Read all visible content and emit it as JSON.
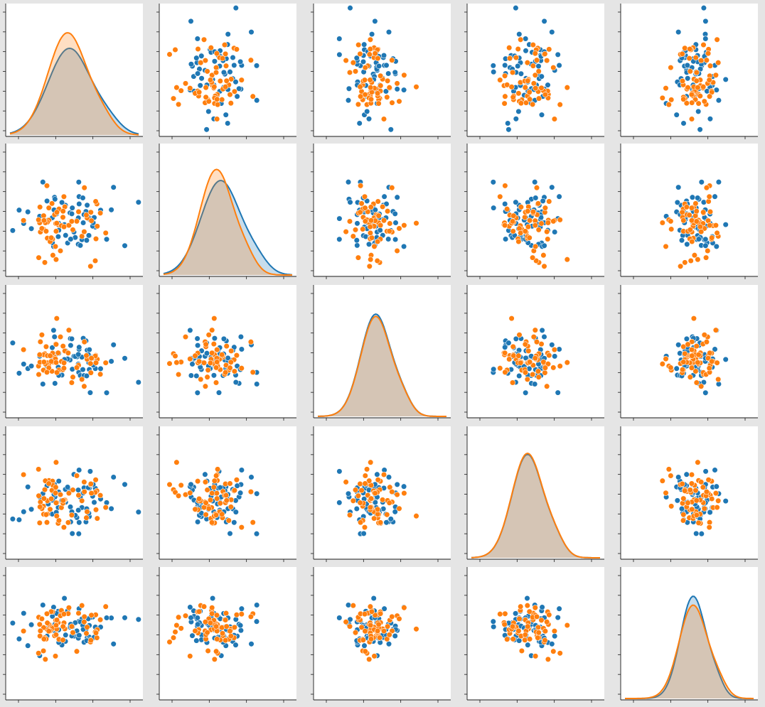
{
  "chart_data": {
    "type": "pairplot",
    "title": "",
    "grid": false,
    "legend": "none",
    "variables": [
      "",
      "",
      "",
      "",
      ""
    ],
    "series": [
      {
        "color": "#1f77b4"
      },
      {
        "color": "#ff7f0e"
      }
    ],
    "ranges": [
      [
        -2.4,
        4.2
      ],
      [
        -2.2,
        4.0
      ],
      [
        -2.6,
        3.4
      ],
      [
        -3.0,
        4.0
      ],
      [
        -2.6,
        2.4
      ]
    ],
    "diagonal_kde": [
      {
        "mean": [
          0.65,
          0.55
        ],
        "sd": [
          1.1,
          1.0
        ],
        "peak": [
          0.78,
          0.92
        ]
      },
      {
        "mean": [
          0.55,
          0.35
        ],
        "sd": [
          0.95,
          0.8
        ],
        "peak": [
          0.85,
          0.95
        ]
      },
      {
        "mean": [
          0.1,
          0.1
        ],
        "sd": [
          0.7,
          0.7
        ],
        "peak": [
          0.92,
          0.9
        ]
      },
      {
        "mean": [
          0.05,
          0.05
        ],
        "sd": [
          0.85,
          0.85
        ],
        "peak": [
          0.93,
          0.94
        ]
      },
      {
        "mean": [
          0.05,
          0.05
        ],
        "sd": [
          0.5,
          0.55
        ],
        "peak": [
          0.92,
          0.84
        ]
      }
    ],
    "points_per_series": 60
  }
}
